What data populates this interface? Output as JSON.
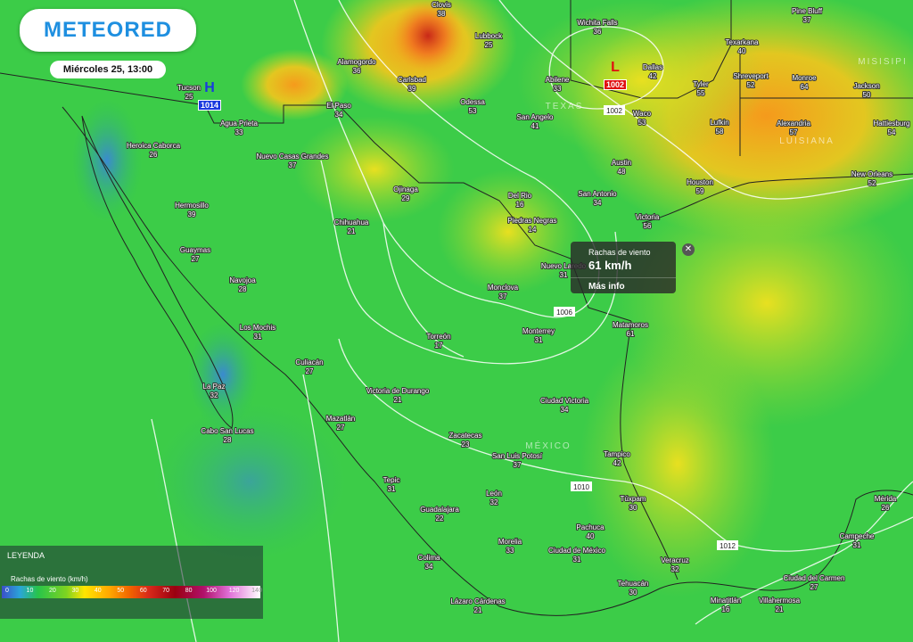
{
  "header": {
    "logo": "METEORED",
    "date": "Miércoles 25, 13:00"
  },
  "popup": {
    "title": "Rachas de viento",
    "value": "61 km/h",
    "link": "Más info"
  },
  "legend": {
    "title": "LEYENDA",
    "subtitle": "Rachas de viento (km/h)",
    "ticks": [
      0,
      10,
      20,
      30,
      40,
      50,
      60,
      70,
      80,
      100,
      120,
      140
    ]
  },
  "pressure_centers": [
    {
      "symbol": "H",
      "value": 1014
    },
    {
      "symbol": "L",
      "value": 1002
    }
  ],
  "isobar_labels": [
    1002,
    1006,
    1010,
    1012
  ],
  "regions": [
    "TEXAS",
    "LUISIANA",
    "MISISIPI",
    "MÉXICO"
  ],
  "cities": [
    {
      "name": "Clovis",
      "value": 38
    },
    {
      "name": "Wichita Falls",
      "value": 36
    },
    {
      "name": "Pine Bluff",
      "value": 37
    },
    {
      "name": "Lubbock",
      "value": 25
    },
    {
      "name": "Texarkana",
      "value": 40
    },
    {
      "name": "Alamogordo",
      "value": 36
    },
    {
      "name": "Carlsbad",
      "value": 39
    },
    {
      "name": "Abilene",
      "value": 33
    },
    {
      "name": "Dallas",
      "value": 42
    },
    {
      "name": "Tyler",
      "value": 55
    },
    {
      "name": "Shreveport",
      "value": 52
    },
    {
      "name": "Monroe",
      "value": 64
    },
    {
      "name": "Jackson",
      "value": 50
    },
    {
      "name": "Tucson",
      "value": 25
    },
    {
      "name": "El Paso",
      "value": 34
    },
    {
      "name": "Odessa",
      "value": 53
    },
    {
      "name": "San Angelo",
      "value": 41
    },
    {
      "name": "Waco",
      "value": 53
    },
    {
      "name": "Lufkin",
      "value": 58
    },
    {
      "name": "Alexandria",
      "value": 57
    },
    {
      "name": "Hattiesburg",
      "value": 54
    },
    {
      "name": "Agua Prieta",
      "value": 33
    },
    {
      "name": "Heroica Caborca",
      "value": 26
    },
    {
      "name": "Nuevo Casas Grandes",
      "value": 37
    },
    {
      "name": "Austin",
      "value": 48
    },
    {
      "name": "Houston",
      "value": 59
    },
    {
      "name": "New Orleans",
      "value": 52
    },
    {
      "name": "Ojinaga",
      "value": 29
    },
    {
      "name": "Del Rio",
      "value": 16
    },
    {
      "name": "San Antonio",
      "value": 34
    },
    {
      "name": "Hermosillo",
      "value": 39
    },
    {
      "name": "Piedras Negras",
      "value": 14
    },
    {
      "name": "Victoria",
      "value": 56
    },
    {
      "name": "Chihuahua",
      "value": 21
    },
    {
      "name": "Guaymas",
      "value": 27
    },
    {
      "name": "Nuevo Laredo",
      "value": 31
    },
    {
      "name": "Navojoa",
      "value": 28
    },
    {
      "name": "Monclova",
      "value": 37
    },
    {
      "name": "Los Mochis",
      "value": 31
    },
    {
      "name": "Torreón",
      "value": 17
    },
    {
      "name": "Monterrey",
      "value": 31
    },
    {
      "name": "Matamoros",
      "value": 61
    },
    {
      "name": "Culiacán",
      "value": 27
    },
    {
      "name": "La Paz",
      "value": 32
    },
    {
      "name": "Victoria de Durango",
      "value": 21
    },
    {
      "name": "Ciudad Victoria",
      "value": 34
    },
    {
      "name": "Mazatlán",
      "value": 27
    },
    {
      "name": "Cabo San Lucas",
      "value": 28
    },
    {
      "name": "Zacatecas",
      "value": 23
    },
    {
      "name": "San Luis Potosí",
      "value": 37
    },
    {
      "name": "Tampico",
      "value": 42
    },
    {
      "name": "Tepic",
      "value": 31
    },
    {
      "name": "León",
      "value": 32
    },
    {
      "name": "Túxpam",
      "value": 30
    },
    {
      "name": "Mérida",
      "value": 26
    },
    {
      "name": "Guadalajara",
      "value": 22
    },
    {
      "name": "Pachuca",
      "value": 40
    },
    {
      "name": "Morelia",
      "value": 33
    },
    {
      "name": "Ciudad de México",
      "value": 31
    },
    {
      "name": "Campeche",
      "value": 31
    },
    {
      "name": "Colima",
      "value": 34
    },
    {
      "name": "Veracruz",
      "value": 32
    },
    {
      "name": "Tehuacán",
      "value": 30
    },
    {
      "name": "Ciudad del Carmen",
      "value": 27
    },
    {
      "name": "Lázaro Cárdenas",
      "value": 21
    },
    {
      "name": "Minatitlán",
      "value": 16
    },
    {
      "name": "Villahermosa",
      "value": 21
    }
  ]
}
